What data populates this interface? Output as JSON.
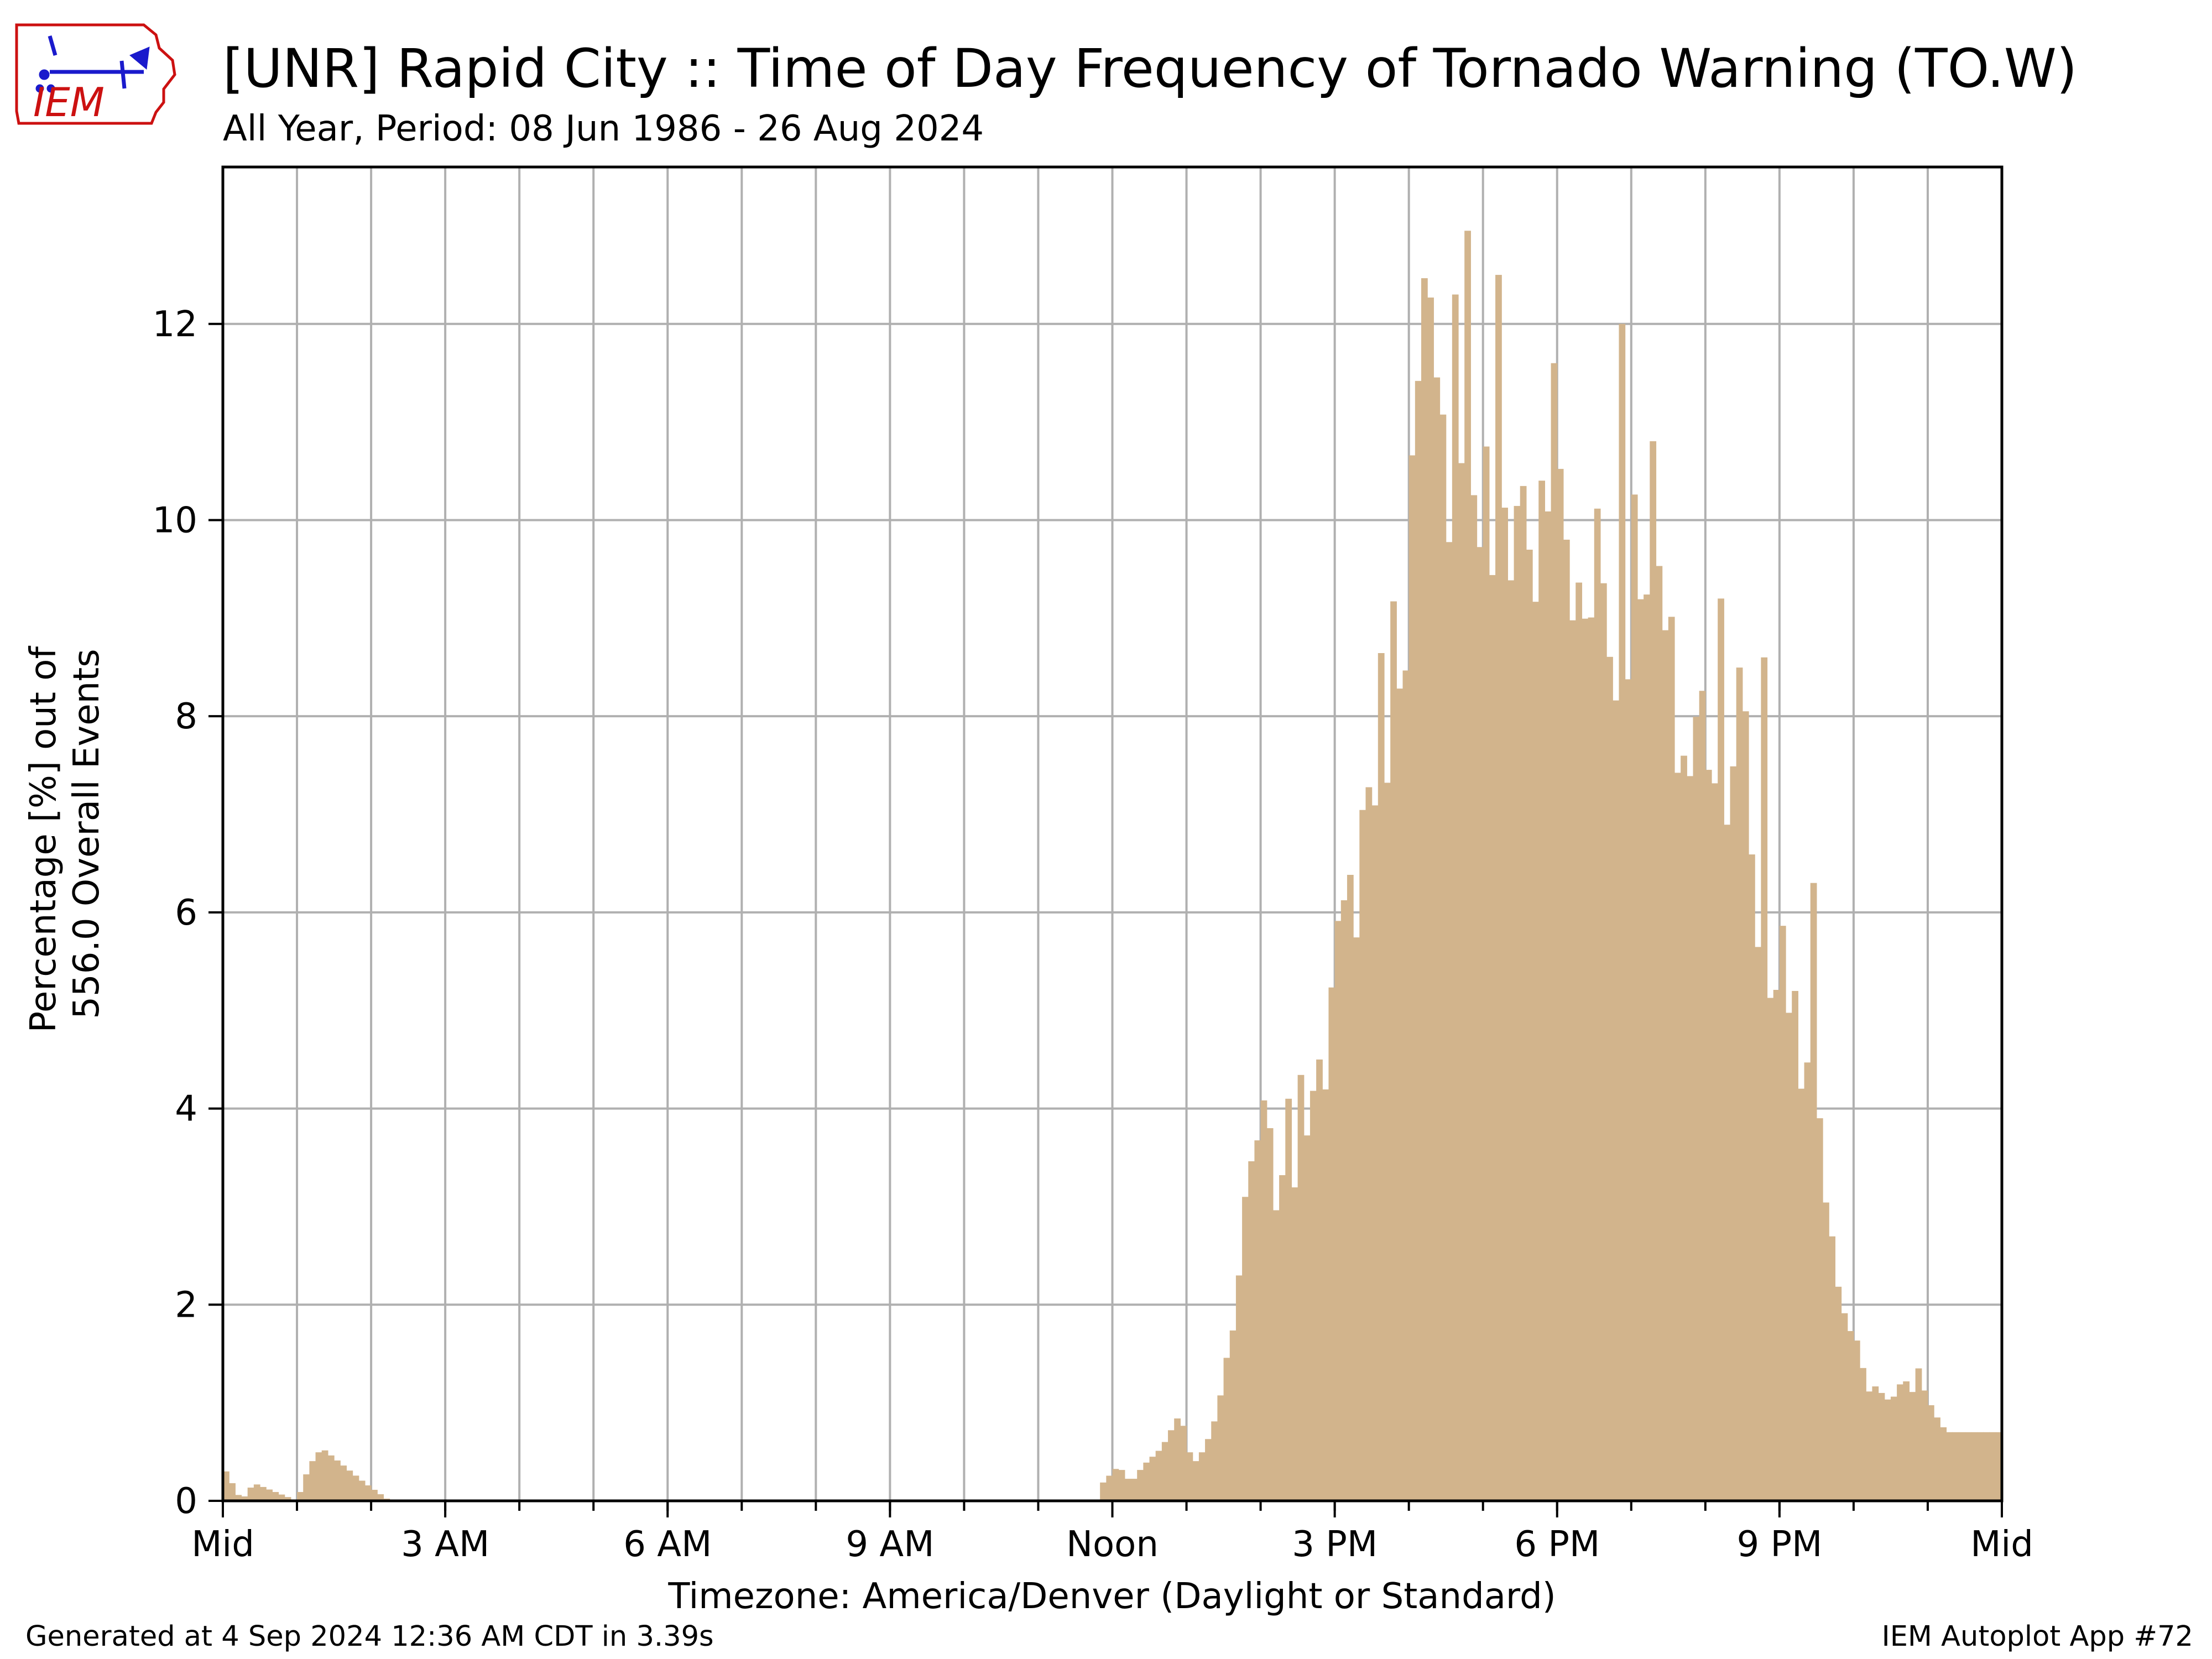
{
  "header": {
    "title": "[UNR] Rapid City :: Time of Day Frequency of Tornado Warning (TO.W)",
    "subtitle": "All Year, Period: 08 Jun 1986 - 26 Aug 2024"
  },
  "logo": {
    "text": "IEM",
    "icon": "iem-iowa-logo"
  },
  "footer": {
    "generated": "Generated at 4 Sep 2024 12:36 AM CDT in 3.39s",
    "app": "IEM Autoplot App #72"
  },
  "colors": {
    "bar": "#d2b48c",
    "grid": "#b0b0b0",
    "logo_red": "#cc1111",
    "logo_blue": "#1a1acc"
  },
  "chart_data": {
    "type": "bar",
    "title": "[UNR] Rapid City :: Time of Day Frequency of Tornado Warning (TO.W)",
    "subtitle": "All Year, Period: 08 Jun 1986 - 26 Aug 2024",
    "xlabel": "Timezone: America/Denver (Daylight or Standard)",
    "ylabel": [
      "Percentage [%] out of",
      "556.0 Overall Events"
    ],
    "xlim": [
      0,
      1440
    ],
    "ylim": [
      0,
      13.6
    ],
    "yticks": [
      0,
      2,
      4,
      6,
      8,
      10,
      12
    ],
    "xticks": [
      {
        "minute": 0,
        "label": "Mid"
      },
      {
        "minute": 180,
        "label": "3 AM"
      },
      {
        "minute": 360,
        "label": "6 AM"
      },
      {
        "minute": 540,
        "label": "9 AM"
      },
      {
        "minute": 720,
        "label": "Noon"
      },
      {
        "minute": 900,
        "label": "3 PM"
      },
      {
        "minute": 1080,
        "label": "6 PM"
      },
      {
        "minute": 1260,
        "label": "9 PM"
      },
      {
        "minute": 1440,
        "label": "Mid"
      }
    ],
    "minor_ticks_minutes": 60,
    "grid": true,
    "bin_minutes": 5,
    "profile": [
      [
        0,
        0.36
      ],
      [
        15,
        0.0
      ],
      [
        25,
        0.18
      ],
      [
        60,
        0.0
      ],
      [
        70,
        0.36
      ],
      [
        80,
        0.54
      ],
      [
        115,
        0.18
      ],
      [
        135,
        0.0
      ],
      [
        710,
        0.0
      ],
      [
        712,
        0.18
      ],
      [
        725,
        0.36
      ],
      [
        735,
        0.18
      ],
      [
        745,
        0.36
      ],
      [
        760,
        0.54
      ],
      [
        775,
        0.9
      ],
      [
        785,
        0.36
      ],
      [
        795,
        0.54
      ],
      [
        805,
        0.9
      ],
      [
        815,
        1.6
      ],
      [
        825,
        2.5
      ],
      [
        835,
        3.6
      ],
      [
        845,
        3.8
      ],
      [
        860,
        2.8
      ],
      [
        875,
        4.1
      ],
      [
        890,
        4.5
      ],
      [
        900,
        5.2
      ],
      [
        915,
        6.2
      ],
      [
        930,
        7.5
      ],
      [
        945,
        8.3
      ],
      [
        960,
        9.8
      ],
      [
        975,
        11.8
      ],
      [
        985,
        10.2
      ],
      [
        1000,
        11.8
      ],
      [
        1015,
        10.3
      ],
      [
        1030,
        9.8
      ],
      [
        1050,
        10.3
      ],
      [
        1065,
        9.5
      ],
      [
        1080,
        10.2
      ],
      [
        1095,
        9.0
      ],
      [
        1110,
        10.2
      ],
      [
        1125,
        8.4
      ],
      [
        1140,
        9.5
      ],
      [
        1155,
        10.3
      ],
      [
        1170,
        8.3
      ],
      [
        1185,
        7.5
      ],
      [
        1200,
        8.0
      ],
      [
        1215,
        7.8
      ],
      [
        1230,
        8.0
      ],
      [
        1245,
        5.4
      ],
      [
        1260,
        5.5
      ],
      [
        1275,
        5.0
      ],
      [
        1285,
        3.8
      ],
      [
        1295,
        4.0
      ],
      [
        1300,
        2.6
      ],
      [
        1310,
        2.2
      ],
      [
        1320,
        1.6
      ],
      [
        1335,
        1.2
      ],
      [
        1350,
        1.0
      ],
      [
        1360,
        1.25
      ],
      [
        1375,
        1.2
      ],
      [
        1385,
        0.9
      ],
      [
        1395,
        0.7
      ],
      [
        1440,
        0.7
      ]
    ],
    "spikes": [
      {
        "minute": 845,
        "value": 3.8
      },
      {
        "minute": 860,
        "value": 4.1
      },
      {
        "minute": 885,
        "value": 4.5
      },
      {
        "minute": 995,
        "value": 12.3
      },
      {
        "minute": 1003,
        "value": 12.95
      },
      {
        "minute": 1030,
        "value": 12.5
      },
      {
        "minute": 1075,
        "value": 11.6
      },
      {
        "minute": 1130,
        "value": 12.0
      },
      {
        "minute": 1210,
        "value": 9.2
      },
      {
        "minute": 1243,
        "value": 8.6
      },
      {
        "minute": 1285,
        "value": 6.3
      }
    ]
  }
}
